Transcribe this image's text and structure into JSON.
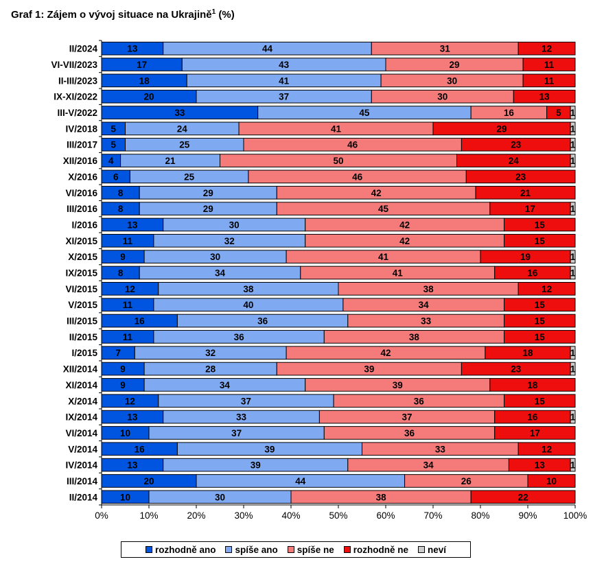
{
  "chart_data": {
    "type": "bar",
    "orientation": "horizontal",
    "stacked": "percent",
    "title": "Graf 1: Zájem o vývoj situace na Ukrajině",
    "title_sup": "1",
    "title_suffix": "(%)",
    "categories": [
      "II/2024",
      "VI-VII/2023",
      "II-III/2023",
      "IX-XI/2022",
      "III-V/2022",
      "IV/2018",
      "III/2017",
      "XII/2016",
      "X/2016",
      "VI/2016",
      "III/2016",
      "I/2016",
      "XI/2015",
      "X/2015",
      "IX/2015",
      "VI/2015",
      "V/2015",
      "III/2015",
      "II/2015",
      "I/2015",
      "XII/2014",
      "XI/2014",
      "X/2014",
      "IX/2014",
      "VI/2014",
      "V/2014",
      "IV/2014",
      "III/2014",
      "II/2014"
    ],
    "series": [
      {
        "name": "rozhodně ano",
        "color": "#0055E0",
        "values": [
          13,
          17,
          18,
          20,
          33,
          5,
          5,
          4,
          6,
          8,
          8,
          13,
          11,
          9,
          8,
          12,
          11,
          16,
          11,
          7,
          9,
          9,
          12,
          13,
          10,
          16,
          13,
          20,
          10
        ]
      },
      {
        "name": "spíše ano",
        "color": "#7FAAF2",
        "values": [
          44,
          43,
          41,
          37,
          45,
          24,
          25,
          21,
          25,
          29,
          29,
          30,
          32,
          30,
          34,
          38,
          40,
          36,
          36,
          32,
          28,
          34,
          37,
          33,
          37,
          39,
          39,
          44,
          30
        ]
      },
      {
        "name": "spíše ne",
        "color": "#F57A7A",
        "values": [
          31,
          29,
          30,
          30,
          16,
          41,
          46,
          50,
          46,
          42,
          45,
          42,
          42,
          41,
          41,
          38,
          34,
          33,
          38,
          42,
          39,
          39,
          36,
          37,
          36,
          33,
          34,
          26,
          38
        ]
      },
      {
        "name": "rozhodně ne",
        "color": "#EE0E0E",
        "values": [
          12,
          11,
          11,
          13,
          5,
          29,
          23,
          24,
          23,
          21,
          17,
          15,
          15,
          19,
          16,
          12,
          15,
          15,
          15,
          18,
          23,
          18,
          15,
          16,
          17,
          12,
          13,
          10,
          22
        ]
      },
      {
        "name": "neví",
        "color": "#CCCCCC",
        "values": [
          0,
          0,
          0,
          0,
          1,
          1,
          1,
          1,
          0,
          0,
          1,
          0,
          0,
          1,
          1,
          0,
          0,
          0,
          0,
          1,
          1,
          0,
          0,
          1,
          0,
          0,
          1,
          0,
          0
        ]
      }
    ],
    "x_ticks": [
      "0%",
      "10%",
      "20%",
      "30%",
      "40%",
      "50%",
      "60%",
      "70%",
      "80%",
      "90%",
      "100%"
    ],
    "xlim": [
      0,
      100
    ],
    "grid": false,
    "legend_position": "bottom"
  }
}
